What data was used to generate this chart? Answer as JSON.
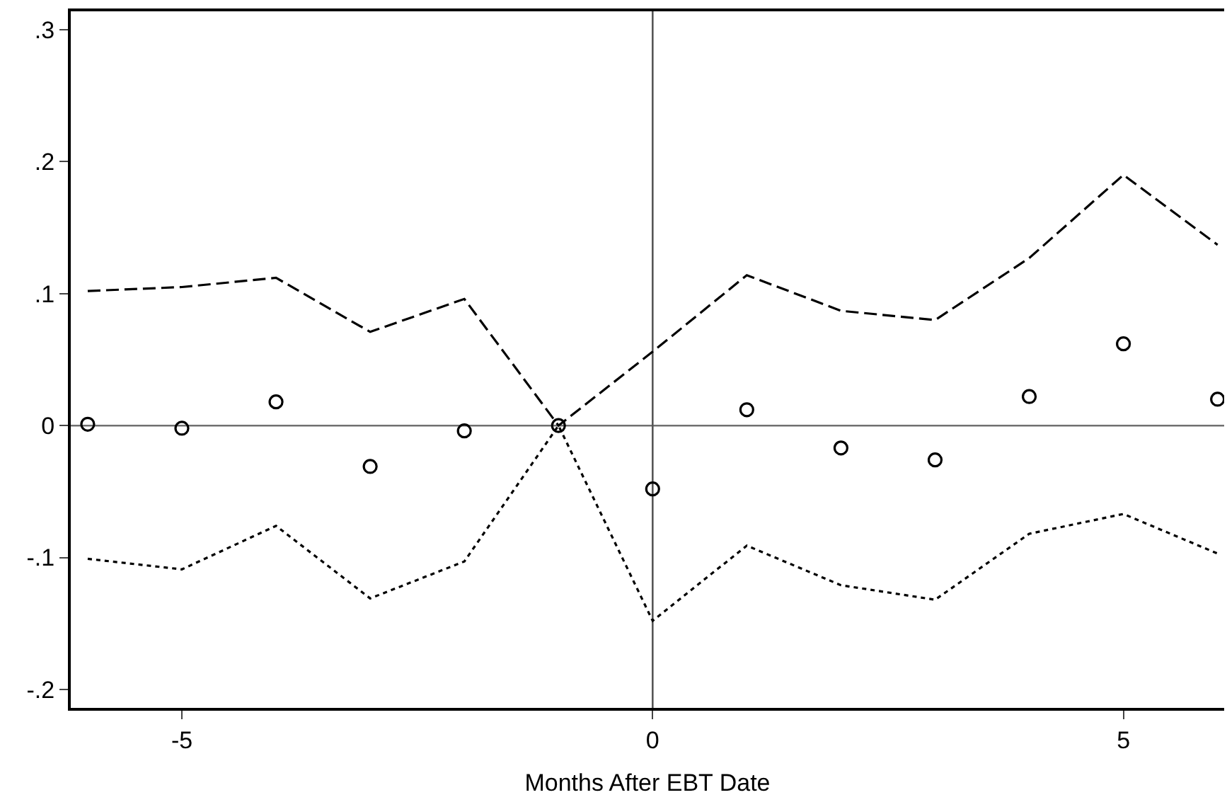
{
  "chart_data": {
    "type": "scatter",
    "xlabel": "Months After EBT Date",
    "x": [
      -6,
      -5,
      -4,
      -3,
      -2,
      -1,
      0,
      1,
      2,
      3,
      4,
      5,
      6
    ],
    "series": [
      {
        "color": "#000000",
        "marker": "circle",
        "values": [
          0.001,
          -0.002,
          0.018,
          -0.031,
          -0.004,
          0,
          -0.048,
          0.012,
          -0.017,
          -0.026,
          0.022,
          0.062,
          0.02
        ]
      },
      {
        "type": "line",
        "color": "#000000",
        "marker": "none",
        "line_style": "dashed",
        "values": [
          0.102,
          0.105,
          0.112,
          0.071,
          0.096,
          0,
          0.056,
          0.114,
          0.087,
          0.08,
          0.127,
          0.19,
          0.137
        ]
      },
      {
        "type": "line",
        "color": "#000000",
        "marker": "none",
        "line_style": "dotted",
        "values": [
          -0.101,
          -0.109,
          -0.076,
          -0.131,
          -0.103,
          0,
          -0.148,
          -0.091,
          -0.121,
          -0.132,
          -0.082,
          -0.067,
          -0.097
        ]
      }
    ],
    "xlim": [
      -6.18,
      6.07
    ],
    "xticks": [
      -5,
      0,
      5
    ],
    "ylim": [
      -0.214,
      0.314
    ],
    "yticks": [
      {
        "value": -0.2,
        "label": "-.2"
      },
      {
        "value": -0.1,
        "label": "-.1"
      },
      {
        "value": 0,
        "label": "0"
      },
      {
        "value": 0.1,
        "label": ".1"
      },
      {
        "value": 0.2,
        "label": ".2"
      },
      {
        "value": 0.3,
        "label": ".3"
      }
    ],
    "ref_lines": [
      {
        "axis": "y",
        "value": 0,
        "color": "#707070"
      },
      {
        "axis": "x",
        "value": 0,
        "color": "#555555"
      }
    ],
    "line_style": "solid"
  }
}
